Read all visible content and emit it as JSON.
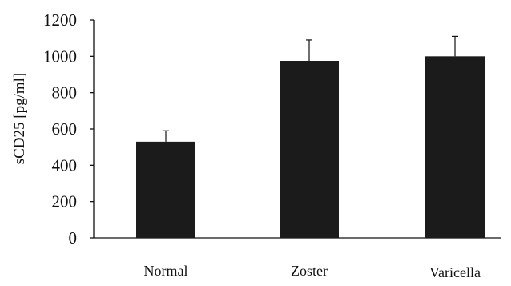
{
  "chart_data": {
    "type": "bar",
    "title": "",
    "xlabel": "",
    "ylabel": "sCD25 [pg/ml]",
    "ylim": [
      0,
      1200
    ],
    "yticks": [
      0,
      200,
      400,
      600,
      800,
      1000,
      1200
    ],
    "ytick_labels": [
      "0",
      "200",
      "400",
      "600",
      "800",
      "1000",
      "1200"
    ],
    "categories": [
      "Normal",
      "Zoster",
      "Varicella"
    ],
    "values": [
      530,
      975,
      1000
    ],
    "error_upper": [
      590,
      1090,
      1110
    ],
    "grid": false,
    "legend": "none",
    "bar_color": "#1b1b1b",
    "axis_color": "#111111"
  }
}
